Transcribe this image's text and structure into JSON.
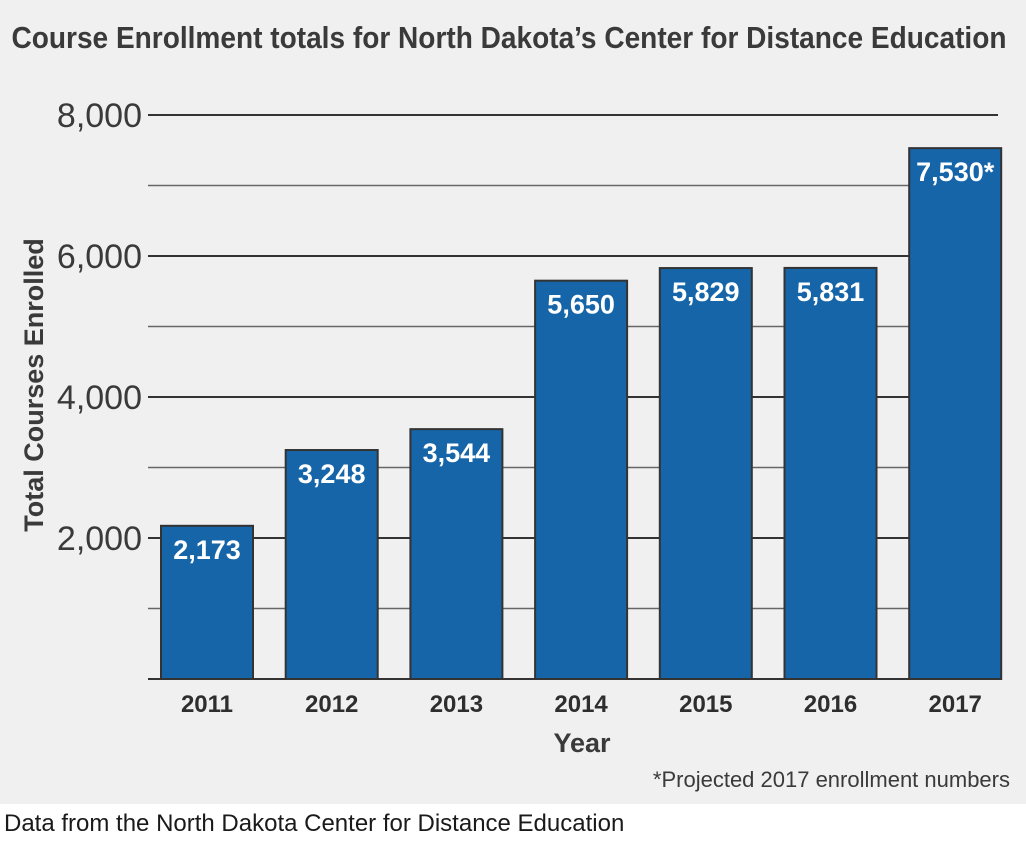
{
  "chart_data": {
    "type": "bar",
    "title": "Course Enrollment totals for North Dakota’s Center for Distance Education",
    "xlabel": "Year",
    "ylabel": "Total Courses Enrolled",
    "categories": [
      "2011",
      "2012",
      "2013",
      "2014",
      "2015",
      "2016",
      "2017"
    ],
    "values": [
      2173,
      3248,
      3544,
      5650,
      5829,
      5831,
      7530
    ],
    "data_labels": [
      "2,173",
      "3,248",
      "3,544",
      "5,650",
      "5,829",
      "5,831",
      "7,530*"
    ],
    "ylim": [
      0,
      8000
    ],
    "yticks": [
      2000,
      4000,
      6000,
      8000
    ],
    "ytick_labels": [
      "2,000",
      "4,000",
      "6,000",
      "8,000"
    ],
    "grid": true,
    "grid_step": 1000,
    "bar_color": "#1565a8",
    "note": "*Projected 2017 enrollment numbers"
  },
  "source": "Data from the North Dakota Center for Distance Education"
}
